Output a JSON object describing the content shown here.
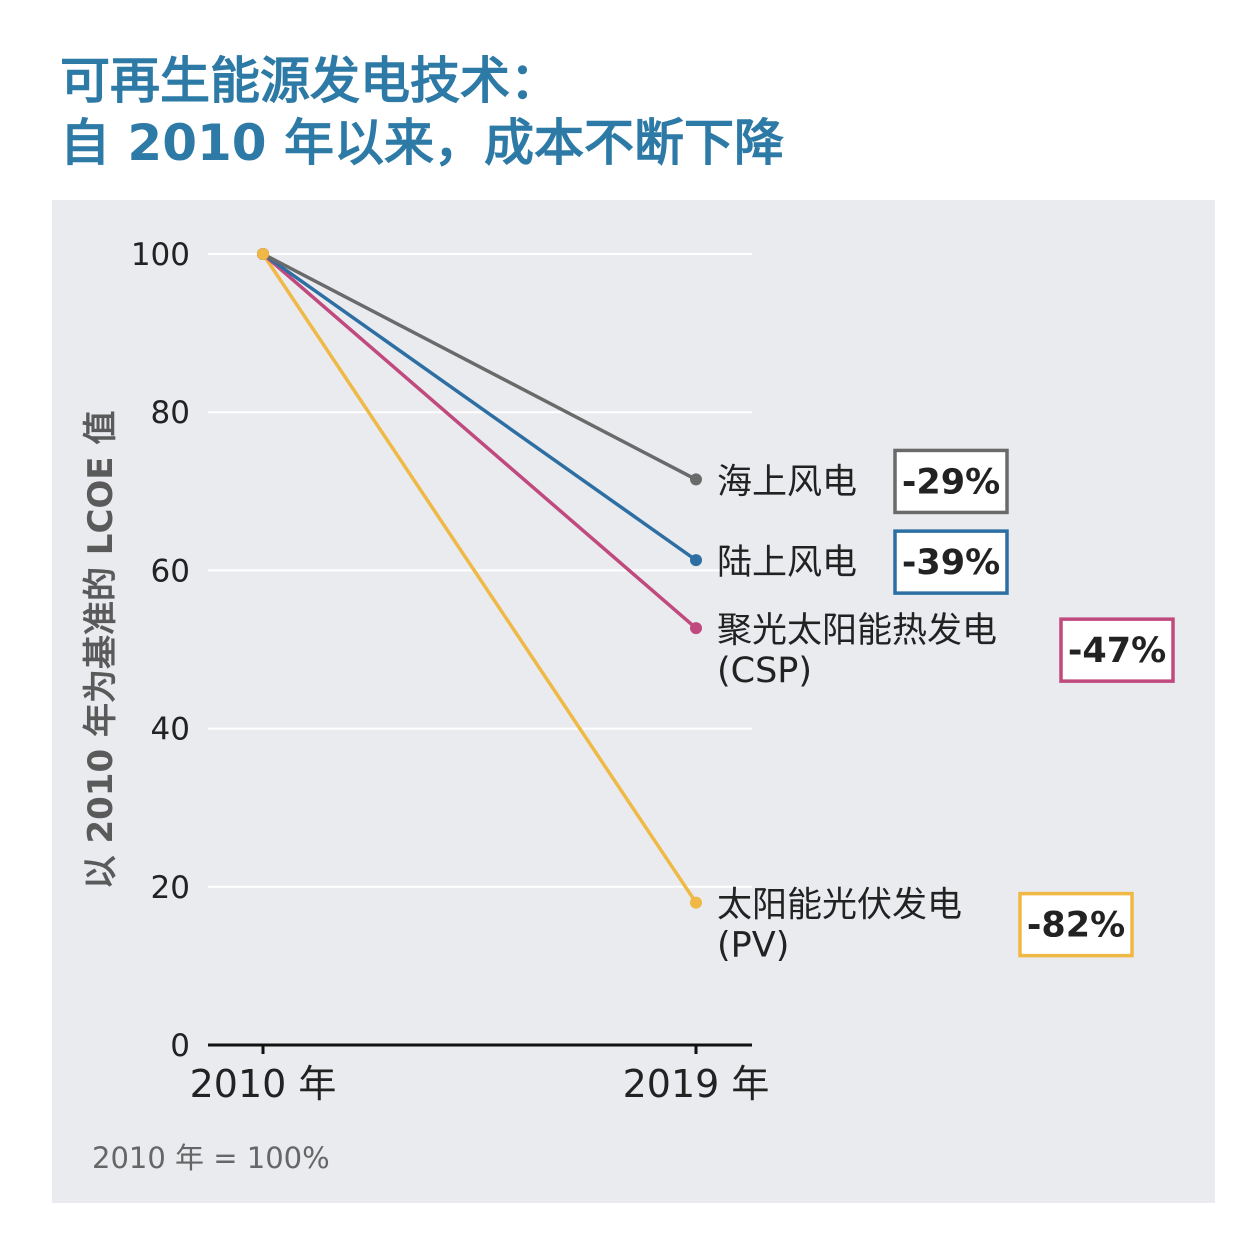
{
  "header": {
    "title_line1": "可再生能源发电技术：",
    "title_line2": "自 2010 年以来，成本不断下降"
  },
  "footnote": "2010 年 = 100%",
  "colors": {
    "title": "#2e7aa6",
    "panel_bg": "#e9ebef"
  },
  "chart_data": {
    "type": "line",
    "x": [
      "2010 年",
      "2019 年"
    ],
    "ylabel": "以 2010 年为基准的 LCOE 值",
    "ylim": [
      0,
      100
    ],
    "yticks": [
      0,
      20,
      40,
      60,
      80,
      100
    ],
    "grid": true,
    "series": [
      {
        "label_lines": [
          "海上风电"
        ],
        "values": [
          100,
          71.5
        ],
        "change": "-29%",
        "color": "#6a6a6a"
      },
      {
        "label_lines": [
          "陆上风电"
        ],
        "values": [
          100,
          61.3
        ],
        "change": "-39%",
        "color": "#2e6fa3"
      },
      {
        "label_lines": [
          "聚光太阳能热发电",
          "(CSP)"
        ],
        "values": [
          100,
          52.7
        ],
        "change": "-47%",
        "color": "#c04a7e"
      },
      {
        "label_lines": [
          "太阳能光伏发电",
          "(PV)"
        ],
        "values": [
          100,
          18.0
        ],
        "change": "-82%",
        "color": "#f0b845"
      }
    ]
  }
}
